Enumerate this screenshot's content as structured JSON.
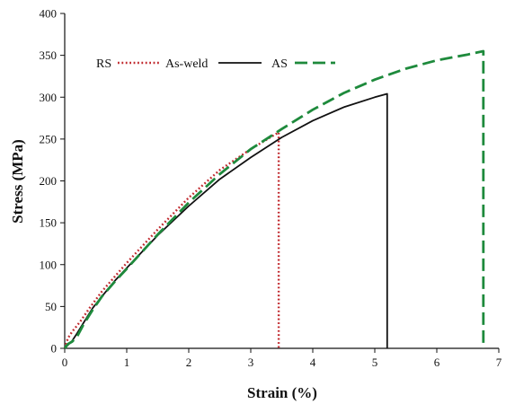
{
  "chart_data": {
    "type": "line",
    "xlabel": "Strain (%)",
    "ylabel": "Stress (MPa)",
    "xlim": [
      0,
      7
    ],
    "ylim": [
      0,
      400
    ],
    "xticks": [
      0,
      1,
      2,
      3,
      4,
      5,
      6,
      7
    ],
    "yticks": [
      0,
      50,
      100,
      150,
      200,
      250,
      300,
      350,
      400
    ],
    "grid": false,
    "legend_position": "top-left",
    "legend_labels": [
      "RS",
      "As-weld",
      "AS"
    ],
    "series": [
      {
        "name": "RS",
        "color": "#c0282d",
        "style": "dotted",
        "points": [
          [
            0,
            0
          ],
          [
            0.05,
            12
          ],
          [
            0.12,
            20
          ],
          [
            0.25,
            32
          ],
          [
            0.4,
            48
          ],
          [
            0.6,
            68
          ],
          [
            0.8,
            85
          ],
          [
            1.0,
            102
          ],
          [
            1.5,
            142
          ],
          [
            2.0,
            180
          ],
          [
            2.5,
            213
          ],
          [
            3.0,
            238
          ],
          [
            3.45,
            258
          ],
          [
            3.45,
            0
          ]
        ]
      },
      {
        "name": "As-weld",
        "color": "#111111",
        "style": "solid",
        "points": [
          [
            0,
            0
          ],
          [
            0.05,
            4
          ],
          [
            0.12,
            9
          ],
          [
            0.2,
            18
          ],
          [
            0.3,
            30
          ],
          [
            0.45,
            48
          ],
          [
            0.6,
            62
          ],
          [
            0.8,
            80
          ],
          [
            1.0,
            96
          ],
          [
            1.5,
            135
          ],
          [
            2.0,
            170
          ],
          [
            2.5,
            202
          ],
          [
            3.0,
            228
          ],
          [
            3.5,
            252
          ],
          [
            4.0,
            272
          ],
          [
            4.5,
            288
          ],
          [
            5.0,
            300
          ],
          [
            5.2,
            304
          ],
          [
            5.2,
            0
          ]
        ]
      },
      {
        "name": "AS",
        "color": "#1e8a3c",
        "style": "dashed",
        "points": [
          [
            0,
            0
          ],
          [
            0.05,
            5
          ],
          [
            0.12,
            8
          ],
          [
            0.2,
            14
          ],
          [
            0.3,
            28
          ],
          [
            0.45,
            46
          ],
          [
            0.6,
            62
          ],
          [
            0.8,
            79
          ],
          [
            1.0,
            95
          ],
          [
            1.5,
            136
          ],
          [
            2.0,
            174
          ],
          [
            2.5,
            208
          ],
          [
            3.0,
            238
          ],
          [
            3.5,
            262
          ],
          [
            4.0,
            285
          ],
          [
            4.5,
            305
          ],
          [
            5.0,
            321
          ],
          [
            5.5,
            334
          ],
          [
            6.0,
            344
          ],
          [
            6.5,
            351
          ],
          [
            6.75,
            355
          ],
          [
            6.75,
            0
          ]
        ]
      }
    ]
  }
}
